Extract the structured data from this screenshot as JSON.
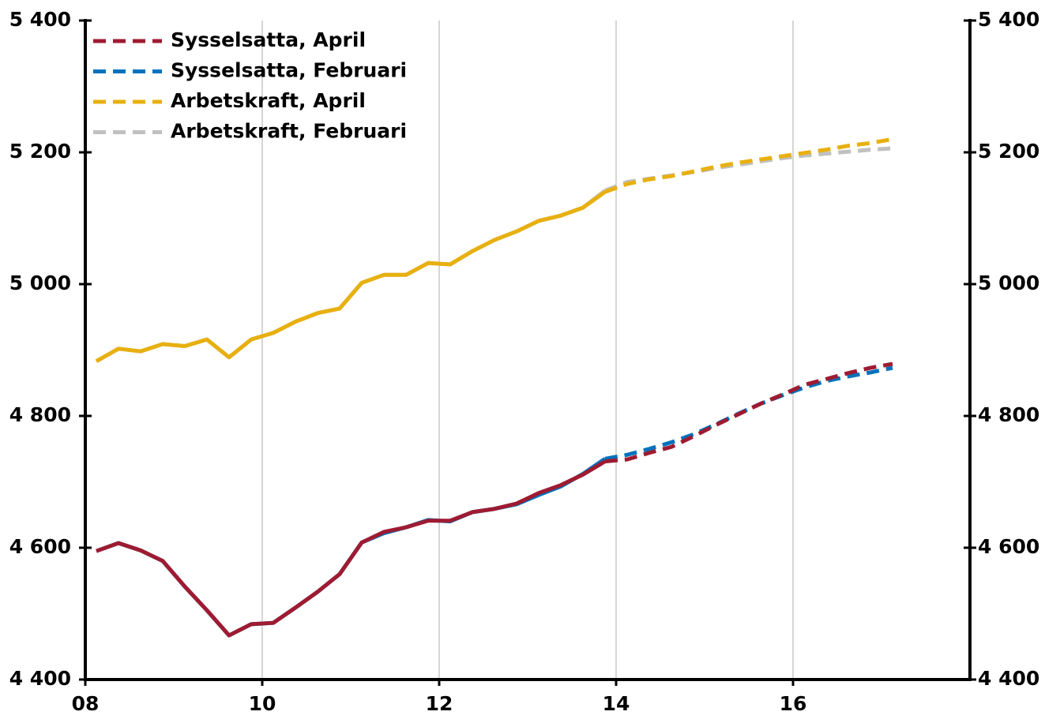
{
  "chart_data": {
    "type": "line",
    "x": [
      2008.125,
      2008.375,
      2008.625,
      2008.875,
      2009.125,
      2009.375,
      2009.625,
      2009.875,
      2010.125,
      2010.375,
      2010.625,
      2010.875,
      2011.125,
      2011.375,
      2011.625,
      2011.875,
      2012.125,
      2012.375,
      2012.625,
      2012.875,
      2013.125,
      2013.375,
      2013.625,
      2013.875,
      2014.125,
      2014.375,
      2014.625,
      2014.875,
      2015.125,
      2015.375,
      2015.625,
      2015.875,
      2016.125,
      2016.375,
      2016.625,
      2016.875,
      2017.125
    ],
    "dashed_from": 2013.875,
    "series": [
      {
        "name": "Sysselsatta, April",
        "color": "#9e1b32",
        "values": [
          4595,
          4607,
          4596,
          4580,
          4541,
          4505,
          4467,
          4484,
          4486,
          4509,
          4533,
          4560,
          4608,
          4624,
          4631,
          4641,
          4641,
          4654,
          4659,
          4667,
          4683,
          4695,
          4711,
          4731,
          4734,
          4744,
          4753,
          4769,
          4786,
          4802,
          4818,
          4832,
          4847,
          4856,
          4865,
          4873,
          4879
        ]
      },
      {
        "name": "Sysselsatta, Februari",
        "color": "#0072bc",
        "values": [
          4595,
          4607,
          4596,
          4580,
          4541,
          4505,
          4467,
          4484,
          4486,
          4509,
          4533,
          4560,
          4608,
          4622,
          4631,
          4642,
          4640,
          4654,
          4659,
          4666,
          4680,
          4693,
          4712,
          4735,
          4741,
          4750,
          4760,
          4772,
          4787,
          4803,
          4818,
          4831,
          4843,
          4853,
          4860,
          4866,
          4873
        ]
      },
      {
        "name": "Arbetskraft, April",
        "color": "#e8b00f",
        "values": [
          4883,
          4902,
          4898,
          4909,
          4906,
          4916,
          4889,
          4916,
          4926,
          4943,
          4956,
          4963,
          5002,
          5014,
          5014,
          5032,
          5030,
          5050,
          5067,
          5080,
          5096,
          5104,
          5116,
          5140,
          5152,
          5159,
          5164,
          5171,
          5178,
          5184,
          5189,
          5194,
          5199,
          5204,
          5210,
          5214,
          5220
        ]
      },
      {
        "name": "Arbetskraft, Februari",
        "color": "#c0c0c0",
        "values": [
          4883,
          4902,
          4898,
          4909,
          4906,
          4916,
          4889,
          4916,
          4926,
          4943,
          4956,
          4963,
          5002,
          5014,
          5014,
          5032,
          5030,
          5050,
          5067,
          5080,
          5096,
          5104,
          5116,
          5142,
          5155,
          5160,
          5165,
          5170,
          5176,
          5181,
          5186,
          5191,
          5195,
          5198,
          5201,
          5204,
          5206
        ]
      }
    ],
    "xlim": [
      2008,
      2018
    ],
    "xticks": [
      {
        "value": 2008,
        "label": "08"
      },
      {
        "value": 2010,
        "label": "10"
      },
      {
        "value": 2012,
        "label": "12"
      },
      {
        "value": 2014,
        "label": "14"
      },
      {
        "value": 2016,
        "label": "16"
      }
    ],
    "ylim": [
      4400,
      5400
    ],
    "yticks": [
      {
        "value": 4400,
        "label": "4 400"
      },
      {
        "value": 4600,
        "label": "4 600"
      },
      {
        "value": 4800,
        "label": "4 800"
      },
      {
        "value": 5000,
        "label": "5 000"
      },
      {
        "value": 5200,
        "label": "5 200"
      },
      {
        "value": 5400,
        "label": "5 400"
      }
    ],
    "y2lim": [
      4400,
      5400
    ],
    "y2ticks": [
      {
        "value": 4400,
        "label": "4 400"
      },
      {
        "value": 4600,
        "label": "4 600"
      },
      {
        "value": 4800,
        "label": "4 800"
      },
      {
        "value": 5000,
        "label": "5 000"
      },
      {
        "value": 5200,
        "label": "5 200"
      },
      {
        "value": 5400,
        "label": "5 400"
      }
    ],
    "grid": "x",
    "legend": "upper-left"
  }
}
